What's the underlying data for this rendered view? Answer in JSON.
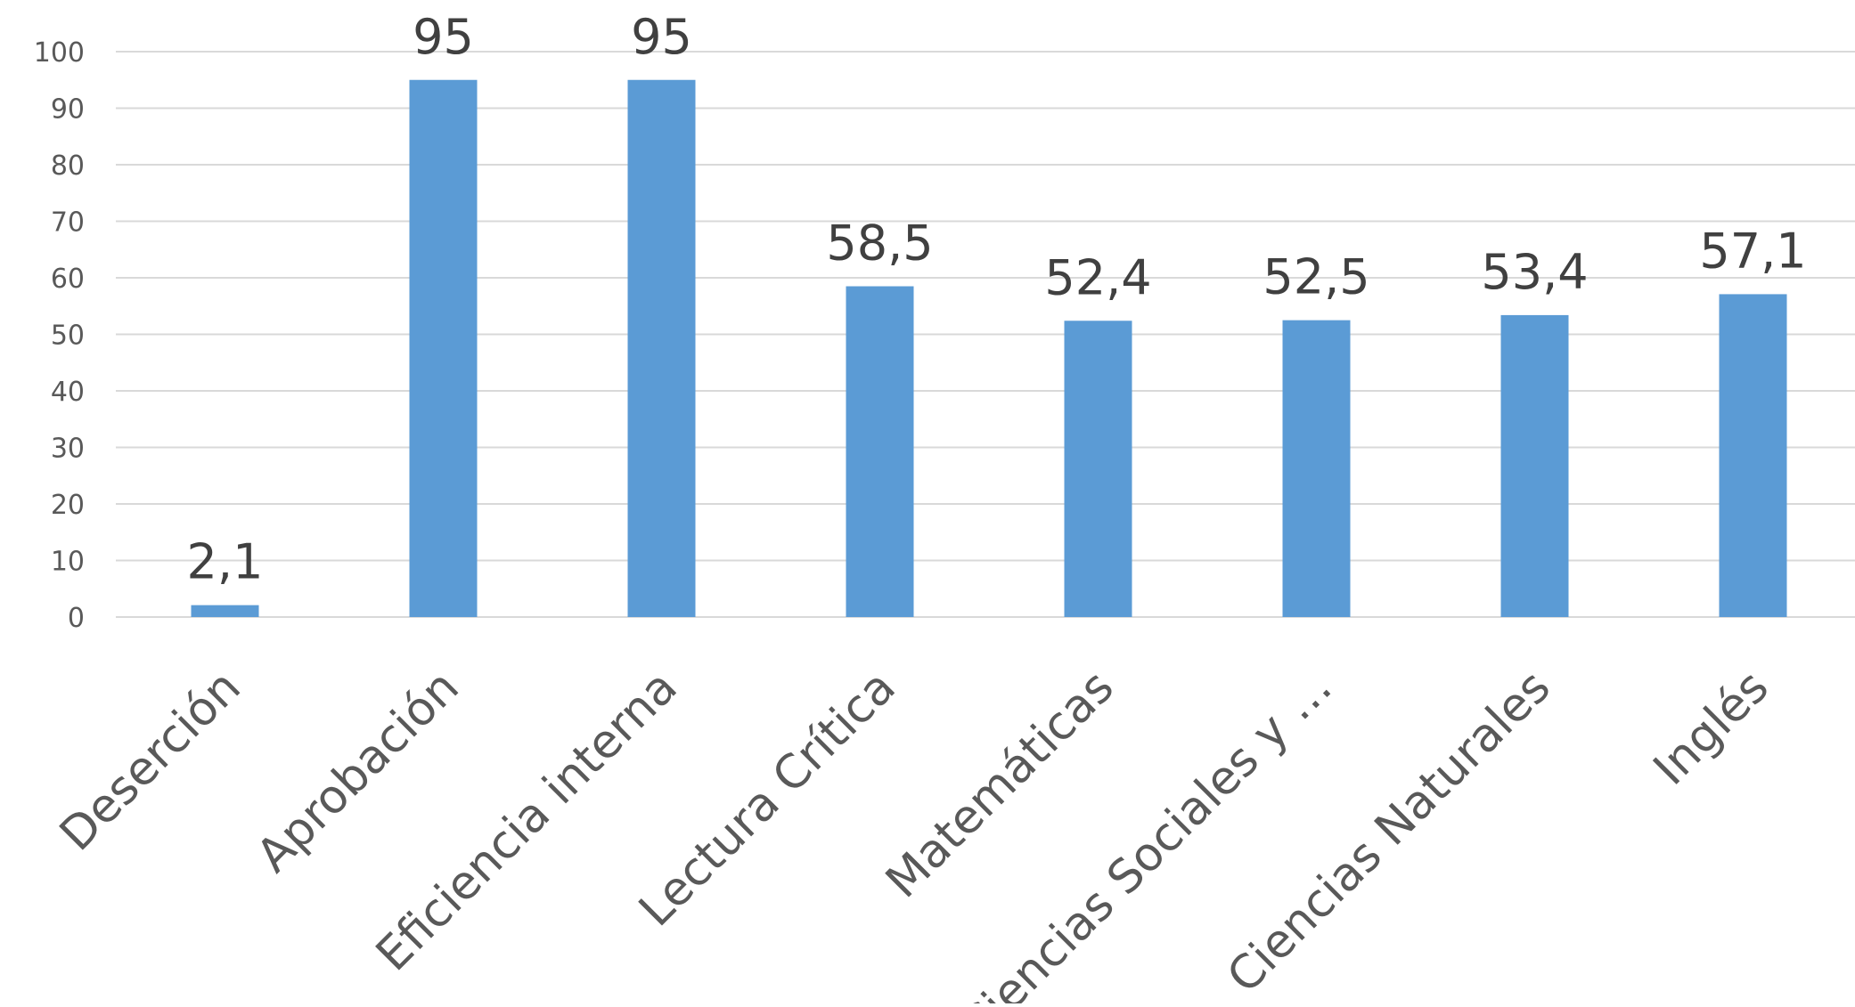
{
  "chart_data": {
    "type": "bar",
    "title": "",
    "xlabel": "",
    "ylabel": "",
    "categories": [
      "Deserción",
      "Aprobación",
      "Eficiencia interna",
      "Lectura Crítica",
      "Matemáticas",
      "Ciencias Sociales y …",
      "Ciencias Naturales",
      "Inglés"
    ],
    "values": [
      2.1,
      95,
      95,
      58.5,
      52.4,
      52.5,
      53.4,
      57.1
    ],
    "data_labels": [
      "2,1",
      "95",
      "95",
      "58,5",
      "52,4",
      "52,5",
      "53,4",
      "57,1"
    ],
    "y_ticks": [
      "0",
      "10",
      "20",
      "30",
      "40",
      "50",
      "60",
      "70",
      "80",
      "90",
      "100"
    ],
    "ylim": [
      0,
      100
    ],
    "grid": true,
    "legend": "none",
    "bar_color": "#5b9bd5"
  }
}
